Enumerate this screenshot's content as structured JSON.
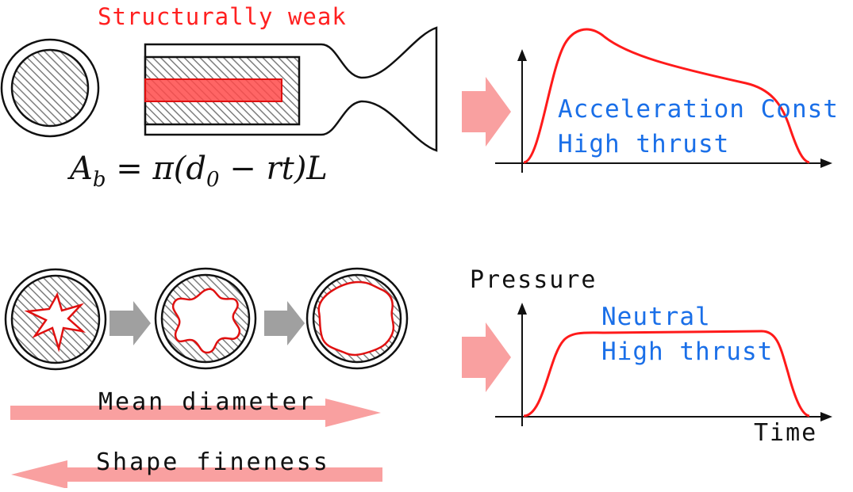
{
  "top": {
    "structurally_weak": "Structurally weak",
    "formula": "A_b = π(d_0 − rt)L",
    "curve_label_1": "Acceleration Const",
    "curve_label_2": "High thrust"
  },
  "bottom": {
    "pressure_axis": "Pressure",
    "time_axis": "Time",
    "curve_label_1": "Neutral",
    "curve_label_2": "High thrust",
    "mean_diameter": "Mean diameter",
    "shape_fineness": "Shape fineness"
  },
  "colors": {
    "red": "#ff2020",
    "blue": "#1a6fe8",
    "arrow_pink": "#f9a0a0",
    "arrow_gray": "#a0a0a0"
  }
}
